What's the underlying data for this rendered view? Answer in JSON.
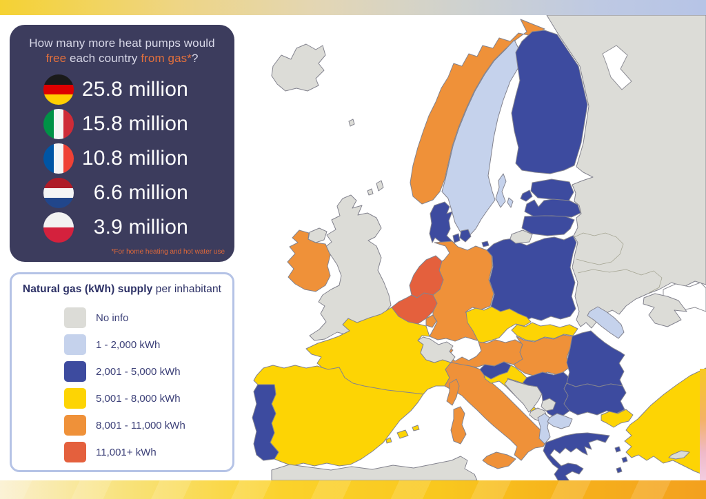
{
  "header_panel": {
    "bg": "#3c3c5d",
    "accent_color": "#e4703c",
    "title": {
      "line1": "How many more heat pumps would",
      "free": "free",
      "middle": " each country ",
      "from_gas": "from gas*",
      "suffix": "?"
    },
    "rows": [
      {
        "country": "Germany",
        "value": "25.8 million",
        "flag": {
          "direction": "horizontal",
          "colors": [
            "#1a1a1a",
            "#dd0000",
            "#ffce00"
          ]
        }
      },
      {
        "country": "Italy",
        "value": "15.8 million",
        "flag": {
          "direction": "vertical",
          "colors": [
            "#009246",
            "#f5f5f5",
            "#ce2b37"
          ]
        }
      },
      {
        "country": "France",
        "value": "10.8 million",
        "flag": {
          "direction": "vertical",
          "colors": [
            "#0055a4",
            "#f5f5f5",
            "#ef4135"
          ]
        }
      },
      {
        "country": "Netherlands",
        "value": "6.6 million",
        "flag": {
          "direction": "horizontal",
          "colors": [
            "#ae1c28",
            "#f5f5f5",
            "#21468b"
          ]
        }
      },
      {
        "country": "Poland",
        "value": "3.9 million",
        "flag": {
          "direction": "horizontal",
          "colors": [
            "#f2f2f2",
            "#d4213d"
          ]
        }
      }
    ],
    "footnote": "*For home heating and hot water use"
  },
  "legend": {
    "title_bold": "Natural gas (kWh) supply",
    "title_regular": " per inhabitant",
    "items": [
      {
        "key": "no_info",
        "label": "No info",
        "color": "#dcdcd7"
      },
      {
        "key": "cat1",
        "label": "1 - 2,000 kWh",
        "color": "#c5d2ec"
      },
      {
        "key": "cat2",
        "label": "2,001 - 5,000 kWh",
        "color": "#3d4b9f"
      },
      {
        "key": "cat3",
        "label": "5,001 - 8,000 kWh",
        "color": "#fdd404"
      },
      {
        "key": "cat4",
        "label": "8,001 - 11,000 kWh",
        "color": "#ef9139"
      },
      {
        "key": "cat5",
        "label": "11,001+ kWh",
        "color": "#e4603d"
      }
    ]
  },
  "chart_data": {
    "type": "choropleth_map",
    "title": "Natural gas (kWh) supply per inhabitant",
    "unit": "kWh per inhabitant",
    "legend_categories": [
      "No info",
      "1 - 2,000 kWh",
      "2,001 - 5,000 kWh",
      "5,001 - 8,000 kWh",
      "8,001 - 11,000 kWh",
      "11,001+ kWh"
    ],
    "heat_pump_callouts": [
      {
        "country": "Germany",
        "value_million": 25.8
      },
      {
        "country": "Italy",
        "value_million": 15.8
      },
      {
        "country": "France",
        "value_million": 10.8
      },
      {
        "country": "Netherlands",
        "value_million": 6.6
      },
      {
        "country": "Poland",
        "value_million": 3.9
      }
    ],
    "countries": [
      {
        "id": "iceland",
        "name": "Iceland",
        "category": "no_info"
      },
      {
        "id": "faroe",
        "name": "Faroe Islands",
        "category": "no_info"
      },
      {
        "id": "uk",
        "name": "United Kingdom",
        "category": "no_info"
      },
      {
        "id": "ireland",
        "name": "Ireland",
        "category": "cat4"
      },
      {
        "id": "norway",
        "name": "Norway",
        "category": "cat4"
      },
      {
        "id": "sweden",
        "name": "Sweden",
        "category": "cat1"
      },
      {
        "id": "finland",
        "name": "Finland",
        "category": "cat2"
      },
      {
        "id": "estonia",
        "name": "Estonia",
        "category": "cat2"
      },
      {
        "id": "latvia",
        "name": "Latvia",
        "category": "cat2"
      },
      {
        "id": "lithuania",
        "name": "Lithuania",
        "category": "cat2"
      },
      {
        "id": "denmark",
        "name": "Denmark",
        "category": "cat2"
      },
      {
        "id": "russia",
        "name": "Russia",
        "category": "no_info"
      },
      {
        "id": "belarus",
        "name": "Belarus",
        "category": "no_info"
      },
      {
        "id": "ukraine",
        "name": "Ukraine",
        "category": "no_info"
      },
      {
        "id": "poland",
        "name": "Poland",
        "category": "cat2"
      },
      {
        "id": "germany",
        "name": "Germany",
        "category": "cat4"
      },
      {
        "id": "netherlands",
        "name": "Netherlands",
        "category": "cat5"
      },
      {
        "id": "belgium",
        "name": "Belgium",
        "category": "cat5"
      },
      {
        "id": "luxembourg",
        "name": "Luxembourg",
        "category": "cat4"
      },
      {
        "id": "france",
        "name": "France",
        "category": "cat3"
      },
      {
        "id": "corsica",
        "name": "Corsica",
        "category": "cat4"
      },
      {
        "id": "switzerland",
        "name": "Switzerland",
        "category": "no_info"
      },
      {
        "id": "austria",
        "name": "Austria",
        "category": "cat4"
      },
      {
        "id": "czechia",
        "name": "Czechia",
        "category": "cat3"
      },
      {
        "id": "slovakia",
        "name": "Slovakia",
        "category": "cat3"
      },
      {
        "id": "hungary",
        "name": "Hungary",
        "category": "cat4"
      },
      {
        "id": "spain",
        "name": "Spain",
        "category": "cat3"
      },
      {
        "id": "portugal",
        "name": "Portugal",
        "category": "cat2"
      },
      {
        "id": "italy",
        "name": "Italy",
        "category": "cat4"
      },
      {
        "id": "slovenia",
        "name": "Slovenia",
        "category": "cat2"
      },
      {
        "id": "croatia",
        "name": "Croatia",
        "category": "cat3"
      },
      {
        "id": "bosnia",
        "name": "Bosnia and Herzegovina",
        "category": "no_info"
      },
      {
        "id": "serbia",
        "name": "Serbia",
        "category": "cat2"
      },
      {
        "id": "montenegro",
        "name": "Montenegro",
        "category": "no_info"
      },
      {
        "id": "kosovo",
        "name": "Kosovo",
        "category": "no_info"
      },
      {
        "id": "albania",
        "name": "Albania",
        "category": "cat1"
      },
      {
        "id": "macedonia",
        "name": "North Macedonia",
        "category": "cat1"
      },
      {
        "id": "greece",
        "name": "Greece",
        "category": "cat2"
      },
      {
        "id": "romania",
        "name": "Romania",
        "category": "cat2"
      },
      {
        "id": "moldova",
        "name": "Moldova",
        "category": "cat1"
      },
      {
        "id": "bulgaria",
        "name": "Bulgaria",
        "category": "cat2"
      },
      {
        "id": "turkey",
        "name": "Turkey",
        "category": "cat3"
      },
      {
        "id": "cyprus",
        "name": "Cyprus",
        "category": "no_info"
      },
      {
        "id": "africa",
        "name": "North Africa",
        "category": "no_info"
      }
    ]
  }
}
